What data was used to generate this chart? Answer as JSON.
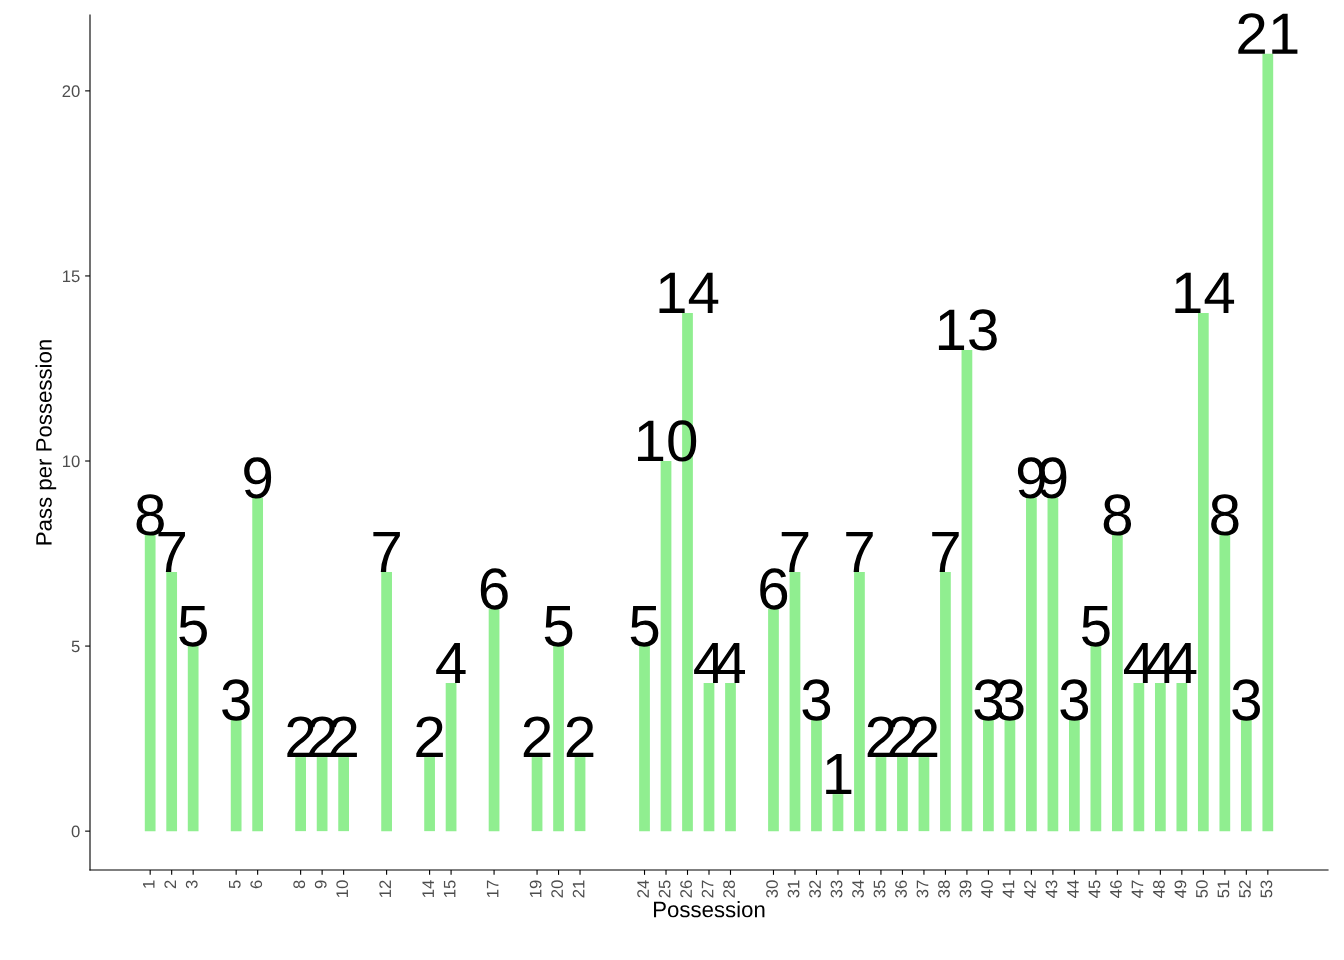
{
  "chart_data": {
    "type": "bar",
    "xlabel": "Possession",
    "ylabel": "Pass per Possession",
    "x": [
      1,
      2,
      3,
      5,
      6,
      8,
      9,
      10,
      12,
      14,
      15,
      17,
      19,
      20,
      21,
      24,
      25,
      26,
      27,
      28,
      30,
      31,
      32,
      33,
      34,
      35,
      36,
      37,
      38,
      39,
      40,
      41,
      42,
      43,
      44,
      45,
      46,
      47,
      48,
      49,
      50,
      51,
      52,
      53
    ],
    "values": [
      8,
      7,
      5,
      3,
      9,
      2,
      2,
      2,
      7,
      2,
      4,
      6,
      2,
      5,
      2,
      5,
      10,
      14,
      4,
      4,
      6,
      7,
      3,
      1,
      7,
      2,
      2,
      2,
      7,
      13,
      3,
      3,
      9,
      9,
      3,
      5,
      8,
      4,
      4,
      4,
      14,
      8,
      3,
      21
    ],
    "color": "#90ee90",
    "xlim": [
      -1.8,
      55.8
    ],
    "xticks": [
      1,
      2,
      3,
      5,
      6,
      8,
      9,
      10,
      12,
      14,
      15,
      17,
      19,
      20,
      21,
      24,
      25,
      26,
      27,
      28,
      30,
      31,
      32,
      33,
      34,
      35,
      36,
      37,
      38,
      39,
      40,
      41,
      42,
      43,
      44,
      45,
      46,
      47,
      48,
      49,
      50,
      51,
      52,
      53
    ],
    "ylim": [
      -1.05,
      22.05
    ],
    "yticks": [
      0,
      5,
      10,
      15,
      20
    ],
    "data_labels": true,
    "grid": false,
    "legend": false
  }
}
